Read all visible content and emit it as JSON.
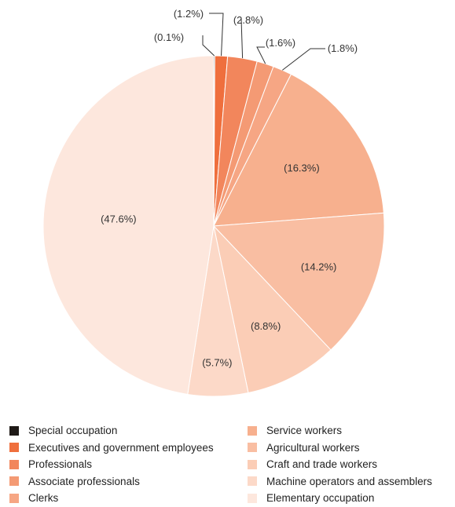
{
  "chart_data": {
    "type": "pie",
    "start": "12 o'clock",
    "direction": "clockwise",
    "slices": [
      {
        "name": "Special occupation",
        "value": 0.1,
        "label": "(0.1%)",
        "color": "#1f1a17"
      },
      {
        "name": "Executives and government employees",
        "value": 1.2,
        "label": "(1.2%)",
        "color": "#ef6f3d"
      },
      {
        "name": "Professionals",
        "value": 2.8,
        "label": "(2.8%)",
        "color": "#f2865c"
      },
      {
        "name": "Associate professionals",
        "value": 1.6,
        "label": "(1.6%)",
        "color": "#f49a74"
      },
      {
        "name": "Clerks",
        "value": 1.8,
        "label": "(1.8%)",
        "color": "#f6a684"
      },
      {
        "name": "Service workers",
        "value": 16.3,
        "label": "(16.3%)",
        "color": "#f7b08e"
      },
      {
        "name": "Agricultural workers",
        "value": 14.2,
        "label": "(14.2%)",
        "color": "#f9bea2"
      },
      {
        "name": "Craft and trade workers",
        "value": 8.8,
        "label": "(8.8%)",
        "color": "#fbcdb6"
      },
      {
        "name": "Machine operators and assemblers",
        "value": 5.7,
        "label": "(5.7%)",
        "color": "#fcd9c8"
      },
      {
        "name": "Elementary occupation",
        "value": 47.6,
        "label": "(47.6%)",
        "color": "#fde7dd"
      }
    ]
  }
}
